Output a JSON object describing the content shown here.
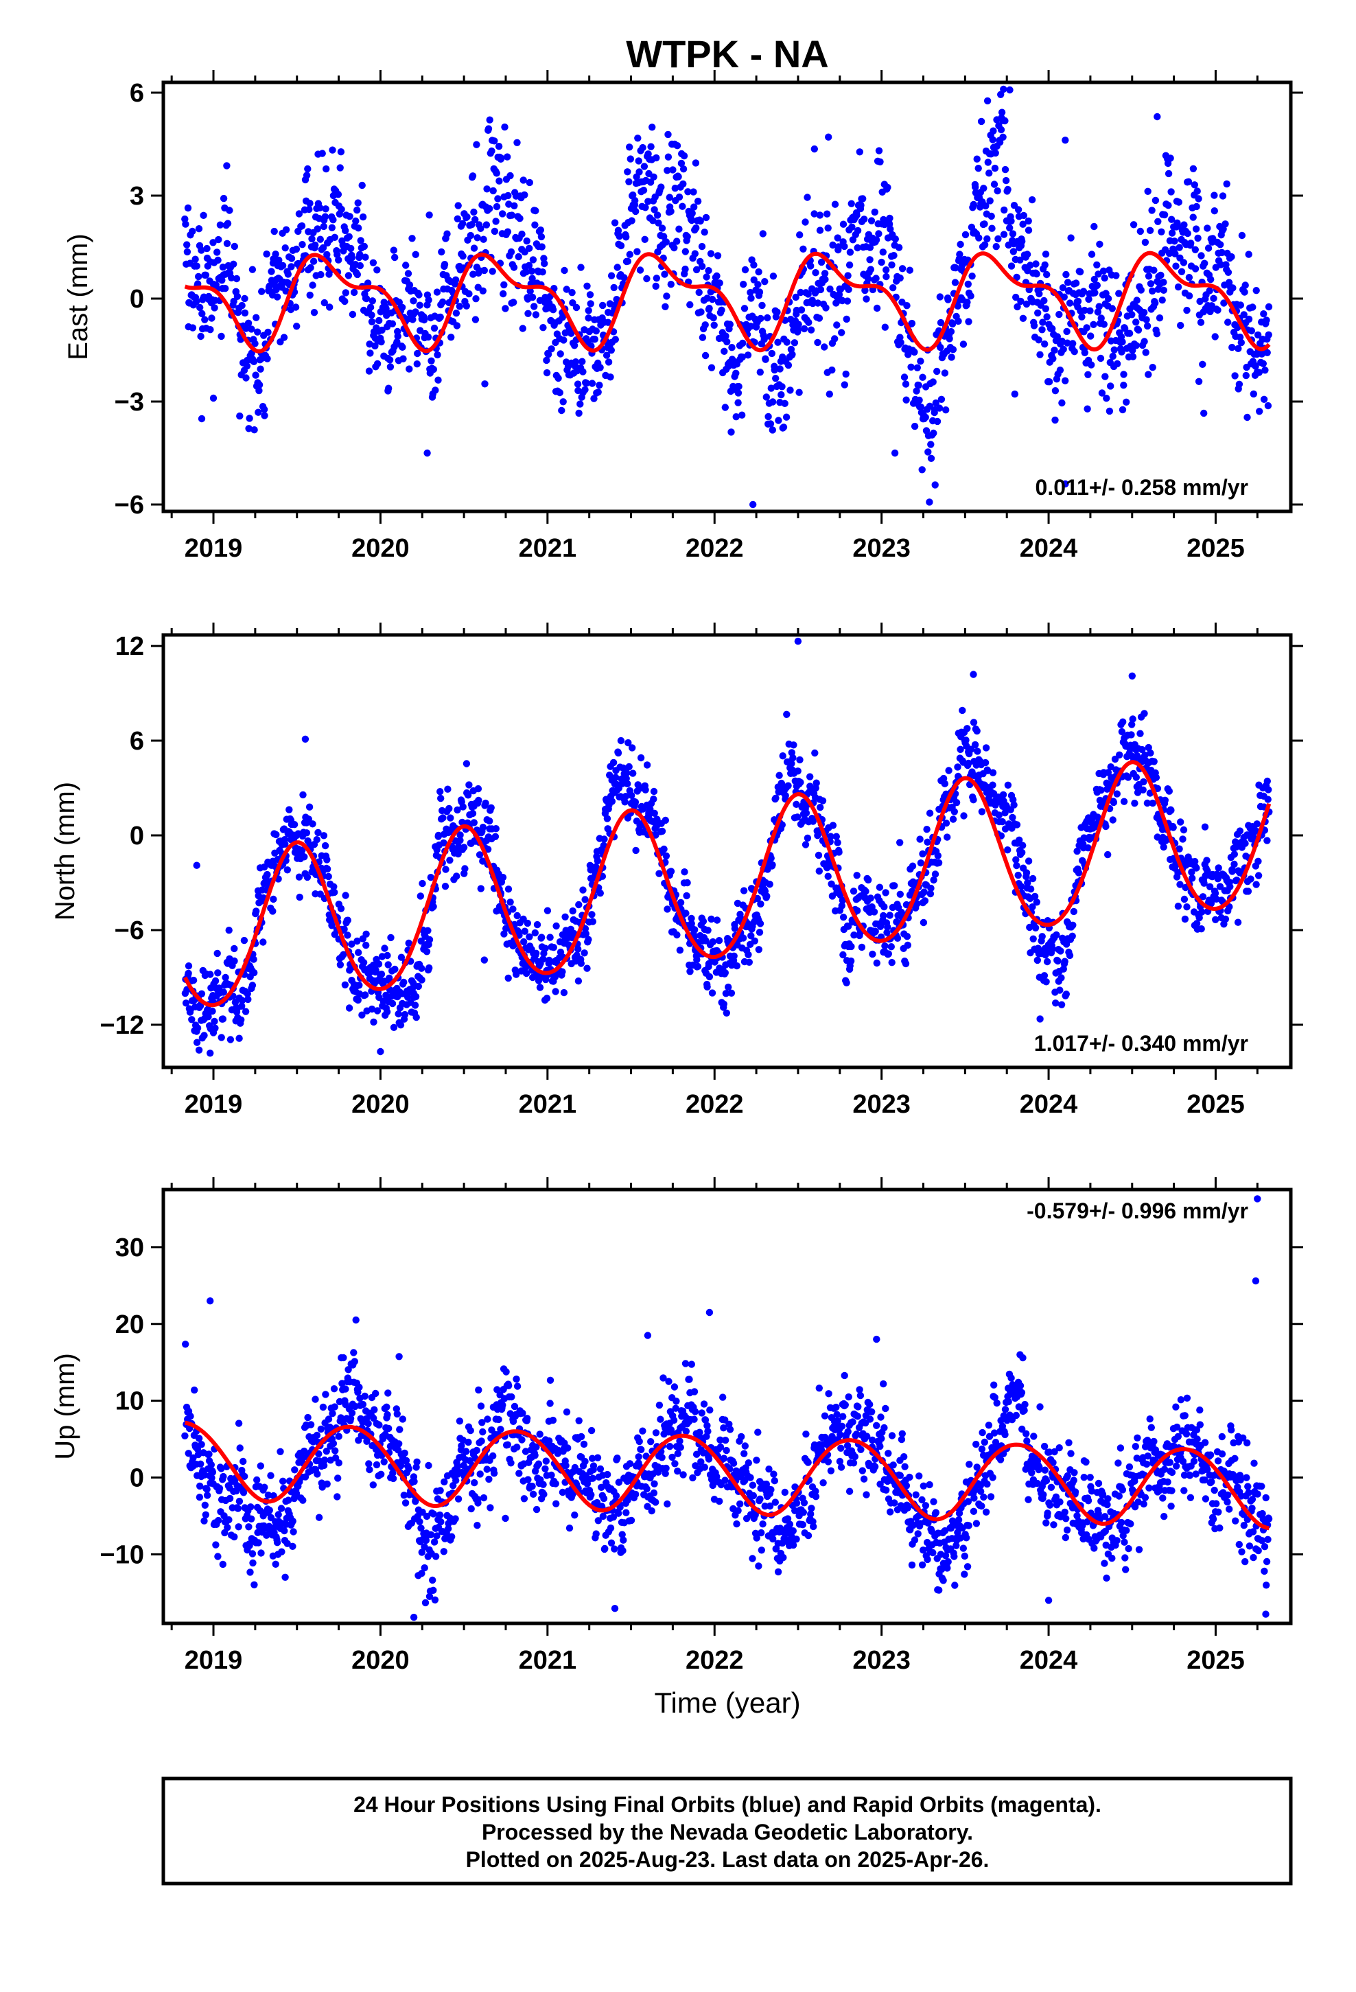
{
  "title": "WTPK - NA",
  "xlabel": "Time (year)",
  "footer": {
    "line1": "24 Hour Positions Using Final Orbits (blue) and Rapid Orbits (magenta).",
    "line2": "Processed by the Nevada Geodetic Laboratory.",
    "line3": "Plotted on 2025-Aug-23. Last data on 2025-Apr-26."
  },
  "colors": {
    "points": "#0000ff",
    "model": "#ff0000",
    "axis": "#000000"
  },
  "chart_data": [
    {
      "type": "scatter",
      "ylabel": "East (mm)",
      "rate_label": "0.011+/- 0.258 mm/yr",
      "rate_position": "bottom-right",
      "xlim": [
        2018.7,
        2025.45
      ],
      "ylim": [
        -6.2,
        6.3
      ],
      "xticks": [
        2019,
        2020,
        2021,
        2022,
        2023,
        2024,
        2025
      ],
      "xtick_labels": [
        "2019",
        "2020",
        "2021",
        "2022",
        "2023",
        "2024",
        "2025"
      ],
      "yticks": [
        -6,
        -3,
        0,
        3,
        6
      ],
      "ytick_labels": [
        "−6",
        "−3",
        "0",
        "3",
        "6"
      ],
      "data_span": [
        2018.83,
        2025.32
      ],
      "model": {
        "name": "",
        "annual_amp": 1.1,
        "annual_peak": 2019.72,
        "semi_amp": 0.55,
        "semi_peak": 2019.55,
        "trend": 0.011,
        "offset": 0.05
      },
      "scatter": {
        "noise_sd": 0.9,
        "seasonal_extra": 1.4,
        "outlier_rate": 0.006,
        "count": 1950
      },
      "outliers": [
        [
          2018.93,
          -3.5
        ],
        [
          2019.0,
          -2.9
        ],
        [
          2022.23,
          -6.0
        ],
        [
          2023.08,
          -4.5
        ],
        [
          2023.73,
          6.1
        ],
        [
          2024.1,
          -5.4
        ],
        [
          2020.28,
          -4.5
        ],
        [
          2024.65,
          5.3
        ]
      ]
    },
    {
      "type": "scatter",
      "ylabel": "North (mm)",
      "rate_label": "1.017+/- 0.340 mm/yr",
      "rate_position": "bottom-right",
      "xlim": [
        2018.7,
        2025.45
      ],
      "ylim": [
        -14.7,
        12.7
      ],
      "xticks": [
        2019,
        2020,
        2021,
        2022,
        2023,
        2024,
        2025
      ],
      "xtick_labels": [
        "2019",
        "2020",
        "2021",
        "2022",
        "2023",
        "2024",
        "2025"
      ],
      "yticks": [
        -12,
        -6,
        0,
        6,
        12
      ],
      "ytick_labels": [
        "−12",
        "−6",
        "0",
        "6",
        "12"
      ],
      "data_span": [
        2018.83,
        2025.32
      ],
      "model": {
        "name": "",
        "annual_amp": 4.9,
        "annual_peak": 2019.5,
        "semi_amp": 0.4,
        "semi_peak": 2019.5,
        "trend": 1.017,
        "offset": -3.2
      },
      "scatter": {
        "noise_sd": 1.2,
        "seasonal_extra": 0.6,
        "outlier_rate": 0.004,
        "count": 1950
      },
      "outliers": [
        [
          2018.98,
          -13.8
        ],
        [
          2019.0,
          -12.5
        ],
        [
          2020.0,
          -13.7
        ],
        [
          2022.5,
          12.3
        ],
        [
          2023.55,
          10.2
        ],
        [
          2024.5,
          10.1
        ],
        [
          2019.55,
          6.1
        ],
        [
          2018.9,
          -1.9
        ]
      ]
    },
    {
      "type": "scatter",
      "ylabel": "Up (mm)",
      "rate_label": "-0.579+/- 0.996 mm/yr",
      "rate_position": "top-right",
      "xlim": [
        2018.7,
        2025.45
      ],
      "ylim": [
        -19.0,
        37.5
      ],
      "xticks": [
        2019,
        2020,
        2021,
        2022,
        2023,
        2024,
        2025
      ],
      "xtick_labels": [
        "2019",
        "2020",
        "2021",
        "2022",
        "2023",
        "2024",
        "2025"
      ],
      "yticks": [
        -10,
        0,
        10,
        20,
        30
      ],
      "ytick_labels": [
        "−10",
        "0",
        "10",
        "20",
        "30"
      ],
      "data_span": [
        2018.83,
        2025.32
      ],
      "model": {
        "name": "",
        "annual_amp": 5.0,
        "annual_peak": 2019.82,
        "semi_amp": 0.3,
        "semi_peak": 2019.6,
        "trend": -0.579,
        "offset": 0.6
      },
      "scatter": {
        "noise_sd": 3.0,
        "seasonal_extra": 1.5,
        "outlier_rate": 0.004,
        "count": 1950
      },
      "outliers": [
        [
          2025.25,
          36.3
        ],
        [
          2025.24,
          25.6
        ],
        [
          2018.98,
          23.0
        ],
        [
          2021.97,
          21.5
        ],
        [
          2020.2,
          -18.2
        ],
        [
          2025.3,
          -17.8
        ],
        [
          2024.0,
          -16.0
        ],
        [
          2021.6,
          18.5
        ],
        [
          2022.97,
          18.0
        ]
      ]
    }
  ]
}
